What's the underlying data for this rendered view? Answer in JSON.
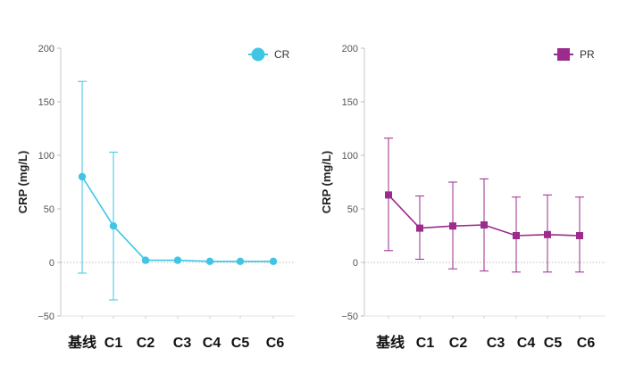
{
  "chart_data": [
    {
      "type": "line",
      "title": "",
      "xlabel": "",
      "ylabel": "CRP (mg/L)",
      "ylim": [
        -50,
        200
      ],
      "yticks": [
        -50,
        0,
        50,
        100,
        150,
        200
      ],
      "ytick_labels": [
        "−50",
        "0",
        "50",
        "100",
        "150",
        "200"
      ],
      "categories": [
        "基线",
        "C1",
        "C2",
        "C3",
        "C4",
        "C5",
        "C6"
      ],
      "reference_line": 0,
      "legend_position": "top-right",
      "series": [
        {
          "name": "CR",
          "color": "#3ec6e4",
          "marker": "circle",
          "values": [
            80,
            34,
            2,
            2,
            1,
            1,
            1
          ],
          "error_low": [
            -10,
            -35,
            2,
            2,
            1,
            1,
            1
          ],
          "error_high": [
            169,
            103,
            2,
            2,
            1,
            1,
            1
          ]
        }
      ]
    },
    {
      "type": "line",
      "title": "",
      "xlabel": "",
      "ylabel": "CRP (mg/L)",
      "ylim": [
        -50,
        200
      ],
      "yticks": [
        -50,
        0,
        50,
        100,
        150,
        200
      ],
      "ytick_labels": [
        "−50",
        "0",
        "50",
        "100",
        "150",
        "200"
      ],
      "categories": [
        "基线",
        "C1",
        "C2",
        "C3",
        "C4",
        "C5",
        "C6"
      ],
      "reference_line": 0,
      "legend_position": "top-right",
      "series": [
        {
          "name": "PR",
          "color": "#9b2b8c",
          "marker": "square",
          "values": [
            63,
            32,
            34,
            35,
            25,
            26,
            25
          ],
          "error_low": [
            11,
            3,
            -6,
            -8,
            -9,
            -9,
            -9
          ],
          "error_high": [
            116,
            62,
            75,
            78,
            61,
            63,
            61
          ]
        }
      ]
    }
  ]
}
